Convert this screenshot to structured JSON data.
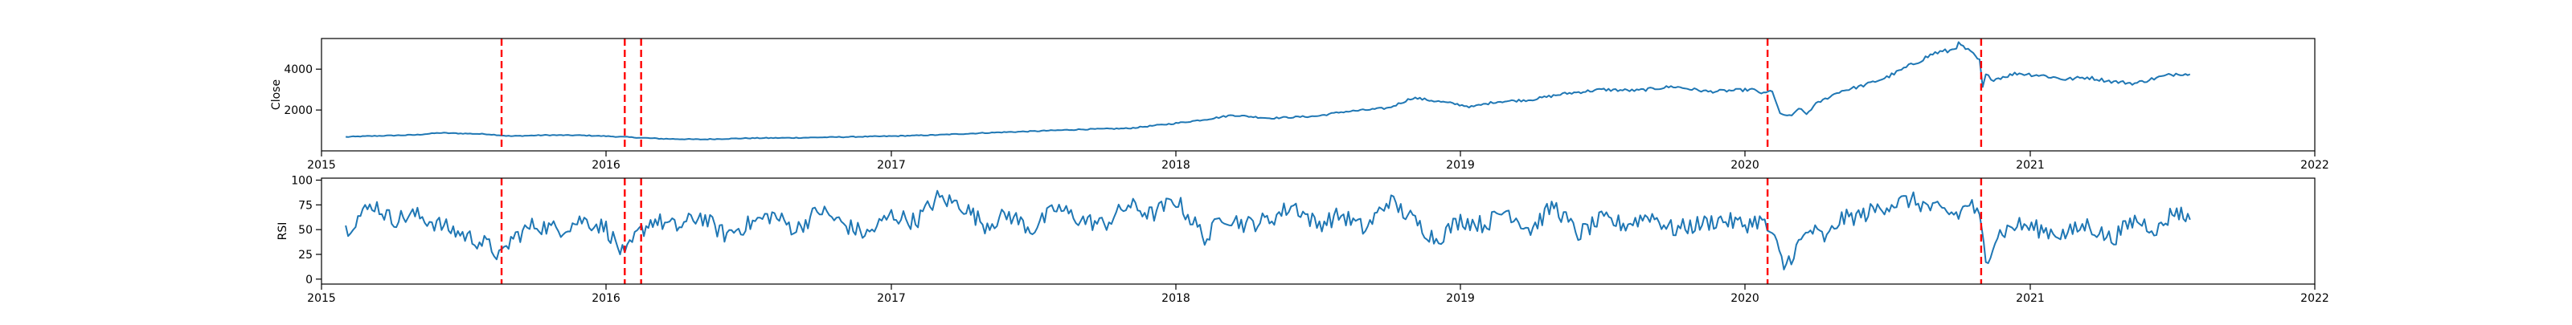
{
  "colors": {
    "series": "#1f77b4",
    "event_line": "#ff0000",
    "axes": "#000000",
    "background": "#ffffff"
  },
  "chart_data": [
    {
      "type": "line",
      "title": "",
      "xlabel": "",
      "ylabel": "Close",
      "x_range": [
        "2015-01-01",
        "2022-01-01"
      ],
      "ylim": [
        0,
        5500
      ],
      "grid": false,
      "y_ticks": [
        2000,
        4000
      ],
      "y_tick_labels": [
        "2000",
        "4000"
      ],
      "x_ticks": [
        "2015-01-01",
        "2016-01-01",
        "2017-01-01",
        "2018-01-01",
        "2019-01-01",
        "2020-01-01",
        "2021-01-01",
        "2022-01-01"
      ],
      "x_tick_labels": [
        "2015",
        "2016",
        "2017",
        "2018",
        "2019",
        "2020",
        "2021",
        "2022"
      ],
      "series": [
        {
          "x": [
            "2015-02-01",
            "2015-03-01",
            "2015-05-01",
            "2015-06-01",
            "2015-08-01",
            "2015-09-01",
            "2015-10-15",
            "2015-12-01",
            "2016-01-01",
            "2016-01-25",
            "2016-02-15",
            "2016-03-15",
            "2016-05-01",
            "2016-07-01",
            "2016-09-01",
            "2016-11-01",
            "2017-01-01",
            "2017-03-01",
            "2017-05-01",
            "2017-07-01",
            "2017-09-01",
            "2017-11-01",
            "2018-01-01",
            "2018-02-10",
            "2018-03-15",
            "2018-05-01",
            "2018-07-01",
            "2018-08-01",
            "2018-09-01",
            "2018-10-01",
            "2018-11-01",
            "2018-12-25",
            "2019-01-15",
            "2019-02-15",
            "2019-04-01",
            "2019-05-15",
            "2019-07-01",
            "2019-08-15",
            "2019-10-01",
            "2019-11-15",
            "2020-01-10",
            "2020-01-25",
            "2020-02-05",
            "2020-02-15",
            "2020-03-01",
            "2020-03-10",
            "2020-03-20",
            "2020-04-01",
            "2020-05-01",
            "2020-06-01",
            "2020-07-01",
            "2020-08-01",
            "2020-09-01",
            "2020-09-20",
            "2020-10-01",
            "2020-10-10",
            "2020-10-20",
            "2020-10-28",
            "2020-11-01",
            "2020-11-05",
            "2020-11-15",
            "2020-12-15",
            "2021-01-15",
            "2021-02-15",
            "2021-03-15",
            "2021-04-15",
            "2021-05-15",
            "2021-06-15",
            "2021-07-10",
            "2021-07-25"
          ],
          "values": [
            680,
            720,
            780,
            880,
            820,
            720,
            770,
            760,
            720,
            680,
            640,
            590,
            560,
            620,
            640,
            680,
            720,
            780,
            880,
            960,
            1050,
            1100,
            1350,
            1550,
            1750,
            1600,
            1700,
            1900,
            2000,
            2100,
            2600,
            2300,
            2150,
            2400,
            2500,
            2800,
            3000,
            2950,
            3150,
            2900,
            3000,
            2800,
            2950,
            1800,
            1700,
            2100,
            1800,
            2300,
            2900,
            3200,
            3600,
            4200,
            4800,
            4900,
            5200,
            5000,
            4700,
            4400,
            3100,
            3700,
            3500,
            3800,
            3700,
            3500,
            3600,
            3400,
            3300,
            3600,
            3800,
            3750
          ]
        }
      ],
      "annotations": {
        "vertical_lines": [
          "2015-08-20",
          "2016-01-25",
          "2016-02-15",
          "2020-01-30",
          "2020-10-30"
        ],
        "line_style": "dashed",
        "line_color": "red"
      }
    },
    {
      "type": "line",
      "title": "",
      "xlabel": "",
      "ylabel": "RSI",
      "x_range": [
        "2015-01-01",
        "2022-01-01"
      ],
      "ylim": [
        -5,
        102
      ],
      "grid": false,
      "y_ticks": [
        0,
        25,
        50,
        75,
        100
      ],
      "y_tick_labels": [
        "0",
        "25",
        "50",
        "75",
        "100"
      ],
      "x_ticks": [
        "2015-01-01",
        "2016-01-01",
        "2017-01-01",
        "2018-01-01",
        "2019-01-01",
        "2020-01-01",
        "2021-01-01",
        "2022-01-01"
      ],
      "x_tick_labels": [
        "2015",
        "2016",
        "2017",
        "2018",
        "2019",
        "2020",
        "2021",
        "2022"
      ],
      "series": [
        {
          "x": [
            "2015-02-01",
            "2015-02-20",
            "2015-03-10",
            "2015-04-01",
            "2015-05-01",
            "2015-06-01",
            "2015-07-01",
            "2015-08-01",
            "2015-08-20",
            "2015-09-01",
            "2015-10-01",
            "2015-11-01",
            "2015-12-01",
            "2016-01-01",
            "2016-01-25",
            "2016-02-10",
            "2016-03-01",
            "2016-04-01",
            "2016-05-01",
            "2016-06-01",
            "2016-07-01",
            "2016-08-01",
            "2016-09-01",
            "2016-10-01",
            "2016-11-01",
            "2016-12-01",
            "2017-01-01",
            "2017-02-01",
            "2017-03-01",
            "2017-04-01",
            "2017-05-01",
            "2017-06-01",
            "2017-07-01",
            "2017-08-01",
            "2017-09-01",
            "2017-10-01",
            "2017-11-01",
            "2017-12-01",
            "2018-01-01",
            "2018-02-10",
            "2018-03-01",
            "2018-04-01",
            "2018-05-01",
            "2018-06-01",
            "2018-07-01",
            "2018-08-01",
            "2018-09-01",
            "2018-10-01",
            "2018-11-01",
            "2018-12-01",
            "2019-01-01",
            "2019-02-01",
            "2019-03-01",
            "2019-04-01",
            "2019-05-01",
            "2019-06-01",
            "2019-07-01",
            "2019-08-01",
            "2019-09-01",
            "2019-10-01",
            "2019-11-01",
            "2019-12-01",
            "2020-01-01",
            "2020-01-20",
            "2020-02-05",
            "2020-02-20",
            "2020-03-10",
            "2020-03-25",
            "2020-04-15",
            "2020-05-01",
            "2020-06-01",
            "2020-07-01",
            "2020-08-01",
            "2020-09-01",
            "2020-10-01",
            "2020-10-15",
            "2020-10-28",
            "2020-11-05",
            "2020-11-20",
            "2020-12-15",
            "2021-01-15",
            "2021-02-15",
            "2021-03-15",
            "2021-04-15",
            "2021-05-15",
            "2021-06-15",
            "2021-07-05",
            "2021-07-25"
          ],
          "values": [
            50,
            65,
            76,
            60,
            65,
            55,
            45,
            35,
            22,
            40,
            55,
            50,
            60,
            52,
            22,
            45,
            60,
            52,
            64,
            45,
            55,
            65,
            50,
            70,
            55,
            45,
            65,
            58,
            82,
            75,
            55,
            65,
            50,
            72,
            60,
            55,
            75,
            65,
            80,
            40,
            65,
            55,
            60,
            75,
            55,
            65,
            50,
            80,
            60,
            40,
            60,
            55,
            70,
            50,
            75,
            45,
            60,
            55,
            65,
            50,
            55,
            60,
            55,
            60,
            45,
            12,
            35,
            50,
            40,
            60,
            65,
            75,
            80,
            70,
            65,
            78,
            60,
            20,
            45,
            55,
            50,
            45,
            55,
            40,
            60,
            50,
            70,
            60
          ]
        }
      ],
      "annotations": {
        "vertical_lines": [
          "2015-08-20",
          "2016-01-25",
          "2016-02-15",
          "2020-01-30",
          "2020-10-30"
        ],
        "line_style": "dashed",
        "line_color": "red"
      }
    }
  ]
}
